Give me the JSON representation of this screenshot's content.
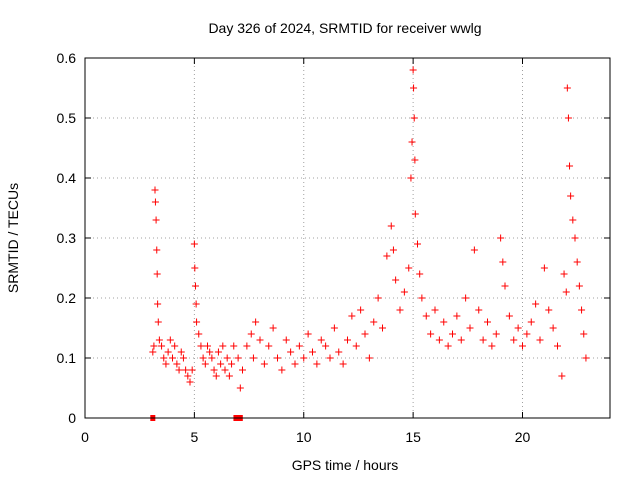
{
  "chart_data": {
    "type": "scatter",
    "title": "Day 326 of 2024, SRMTID for receiver wwlg",
    "xlabel": "GPS time / hours",
    "ylabel": "SRMTID / TECUs",
    "xlim": [
      0,
      24
    ],
    "ylim": [
      0,
      0.6
    ],
    "xticks": [
      0,
      5,
      10,
      15,
      20
    ],
    "yticks": [
      0,
      0.1,
      0.2,
      0.3,
      0.4,
      0.5,
      0.6
    ],
    "xtick_labels": [
      "0",
      "5",
      "10",
      "15",
      "20"
    ],
    "ytick_labels": [
      "0",
      "0.1",
      "0.2",
      "0.3",
      "0.4",
      "0.5",
      "0.6"
    ],
    "grid": true,
    "series_color": "#ff0000",
    "series": [
      {
        "name": "SRMTID",
        "points": [
          [
            3.1,
            0.11
          ],
          [
            3.15,
            0.12
          ],
          [
            3.2,
            0.38
          ],
          [
            3.22,
            0.36
          ],
          [
            3.25,
            0.33
          ],
          [
            3.28,
            0.28
          ],
          [
            3.3,
            0.24
          ],
          [
            3.32,
            0.19
          ],
          [
            3.35,
            0.16
          ],
          [
            3.4,
            0.13
          ],
          [
            3.5,
            0.12
          ],
          [
            3.6,
            0.1
          ],
          [
            3.7,
            0.09
          ],
          [
            3.8,
            0.11
          ],
          [
            3.9,
            0.13
          ],
          [
            4.0,
            0.1
          ],
          [
            4.1,
            0.12
          ],
          [
            4.2,
            0.09
          ],
          [
            4.3,
            0.08
          ],
          [
            4.4,
            0.11
          ],
          [
            4.5,
            0.1
          ],
          [
            4.6,
            0.08
          ],
          [
            4.7,
            0.07
          ],
          [
            4.8,
            0.06
          ],
          [
            4.9,
            0.08
          ],
          [
            5.0,
            0.29
          ],
          [
            5.02,
            0.25
          ],
          [
            5.05,
            0.22
          ],
          [
            5.08,
            0.19
          ],
          [
            5.1,
            0.16
          ],
          [
            5.2,
            0.14
          ],
          [
            5.3,
            0.12
          ],
          [
            5.4,
            0.1
          ],
          [
            5.5,
            0.09
          ],
          [
            5.6,
            0.12
          ],
          [
            5.7,
            0.11
          ],
          [
            5.8,
            0.1
          ],
          [
            5.9,
            0.08
          ],
          [
            6.0,
            0.07
          ],
          [
            6.1,
            0.11
          ],
          [
            6.2,
            0.09
          ],
          [
            6.3,
            0.12
          ],
          [
            6.4,
            0.08
          ],
          [
            6.5,
            0.1
          ],
          [
            6.6,
            0.07
          ],
          [
            6.7,
            0.09
          ],
          [
            6.8,
            0.12
          ],
          [
            7.0,
            0.1
          ],
          [
            7.1,
            0.05
          ],
          [
            7.2,
            0.08
          ],
          [
            7.4,
            0.12
          ],
          [
            7.6,
            0.14
          ],
          [
            7.7,
            0.1
          ],
          [
            7.8,
            0.16
          ],
          [
            8.0,
            0.13
          ],
          [
            8.2,
            0.09
          ],
          [
            8.4,
            0.12
          ],
          [
            8.6,
            0.15
          ],
          [
            8.8,
            0.1
          ],
          [
            9.0,
            0.08
          ],
          [
            9.2,
            0.13
          ],
          [
            9.4,
            0.11
          ],
          [
            9.6,
            0.09
          ],
          [
            9.8,
            0.12
          ],
          [
            10.0,
            0.1
          ],
          [
            10.2,
            0.14
          ],
          [
            10.4,
            0.11
          ],
          [
            10.6,
            0.09
          ],
          [
            10.8,
            0.13
          ],
          [
            11.0,
            0.12
          ],
          [
            11.2,
            0.1
          ],
          [
            11.4,
            0.15
          ],
          [
            11.6,
            0.11
          ],
          [
            11.8,
            0.09
          ],
          [
            12.0,
            0.13
          ],
          [
            12.2,
            0.17
          ],
          [
            12.4,
            0.12
          ],
          [
            12.6,
            0.18
          ],
          [
            12.8,
            0.14
          ],
          [
            13.0,
            0.1
          ],
          [
            13.2,
            0.16
          ],
          [
            13.4,
            0.2
          ],
          [
            13.6,
            0.15
          ],
          [
            13.8,
            0.27
          ],
          [
            14.0,
            0.32
          ],
          [
            14.1,
            0.28
          ],
          [
            14.2,
            0.23
          ],
          [
            14.4,
            0.18
          ],
          [
            14.6,
            0.21
          ],
          [
            14.8,
            0.25
          ],
          [
            14.9,
            0.4
          ],
          [
            14.95,
            0.46
          ],
          [
            15.0,
            0.58
          ],
          [
            15.02,
            0.55
          ],
          [
            15.05,
            0.5
          ],
          [
            15.08,
            0.43
          ],
          [
            15.1,
            0.34
          ],
          [
            15.2,
            0.29
          ],
          [
            15.3,
            0.24
          ],
          [
            15.4,
            0.2
          ],
          [
            15.6,
            0.17
          ],
          [
            15.8,
            0.14
          ],
          [
            16.0,
            0.18
          ],
          [
            16.2,
            0.13
          ],
          [
            16.4,
            0.16
          ],
          [
            16.6,
            0.12
          ],
          [
            16.8,
            0.14
          ],
          [
            17.0,
            0.17
          ],
          [
            17.2,
            0.13
          ],
          [
            17.4,
            0.2
          ],
          [
            17.6,
            0.15
          ],
          [
            17.8,
            0.28
          ],
          [
            18.0,
            0.18
          ],
          [
            18.2,
            0.13
          ],
          [
            18.4,
            0.16
          ],
          [
            18.6,
            0.12
          ],
          [
            18.8,
            0.14
          ],
          [
            19.0,
            0.3
          ],
          [
            19.1,
            0.26
          ],
          [
            19.2,
            0.22
          ],
          [
            19.4,
            0.17
          ],
          [
            19.6,
            0.13
          ],
          [
            19.8,
            0.15
          ],
          [
            20.0,
            0.12
          ],
          [
            20.2,
            0.14
          ],
          [
            20.4,
            0.16
          ],
          [
            20.6,
            0.19
          ],
          [
            20.8,
            0.13
          ],
          [
            21.0,
            0.25
          ],
          [
            21.2,
            0.18
          ],
          [
            21.4,
            0.15
          ],
          [
            21.6,
            0.12
          ],
          [
            21.8,
            0.07
          ],
          [
            21.9,
            0.24
          ],
          [
            22.0,
            0.21
          ],
          [
            22.05,
            0.55
          ],
          [
            22.1,
            0.5
          ],
          [
            22.15,
            0.42
          ],
          [
            22.2,
            0.37
          ],
          [
            22.3,
            0.33
          ],
          [
            22.4,
            0.3
          ],
          [
            22.5,
            0.26
          ],
          [
            22.6,
            0.22
          ],
          [
            22.7,
            0.18
          ],
          [
            22.8,
            0.14
          ],
          [
            22.9,
            0.1
          ]
        ]
      }
    ],
    "zero_markers_x": [
      3.1,
      6.9,
      7.0,
      7.1
    ]
  }
}
